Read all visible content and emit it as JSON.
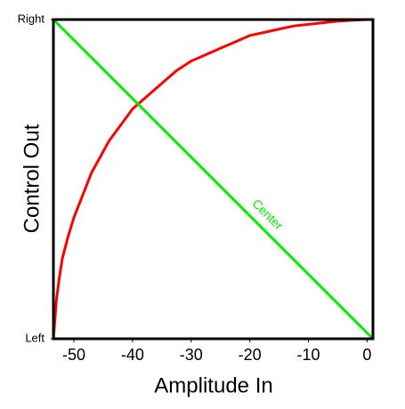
{
  "chart_data": {
    "type": "line",
    "xlabel": "Amplitude In",
    "ylabel": "Control Out",
    "xlim": [
      -53.5,
      1
    ],
    "xticks": [
      -50,
      -40,
      -30,
      -20,
      -10,
      0
    ],
    "ylim": [
      0,
      1
    ],
    "yticks": [
      {
        "value": 0,
        "label": "Left"
      },
      {
        "value": 1,
        "label": "Right"
      }
    ],
    "series": [
      {
        "color": "#ff0000",
        "x": [
          -53.5,
          -53.2,
          -53,
          -52.5,
          -52,
          -51,
          -50,
          -48.5,
          -47,
          -45.5,
          -44,
          -42,
          -40,
          -37.5,
          -35,
          -32.5,
          -30,
          -27.5,
          -25,
          -22.5,
          -20,
          -17.5,
          -15,
          -12.5,
          -10,
          -7.5,
          -5,
          -2.5,
          0,
          1
        ],
        "values": [
          0,
          0.07,
          0.12,
          0.19,
          0.25,
          0.32,
          0.38,
          0.45,
          0.52,
          0.57,
          0.62,
          0.67,
          0.72,
          0.76,
          0.8,
          0.84,
          0.87,
          0.89,
          0.91,
          0.93,
          0.95,
          0.96,
          0.97,
          0.98,
          0.985,
          0.99,
          0.995,
          0.998,
          1,
          1
        ]
      },
      {
        "color": "#00ee00",
        "x": [
          -53.5,
          1
        ],
        "values": [
          1,
          0
        ]
      }
    ],
    "annotations": [
      {
        "text": "Center"
      }
    ]
  }
}
